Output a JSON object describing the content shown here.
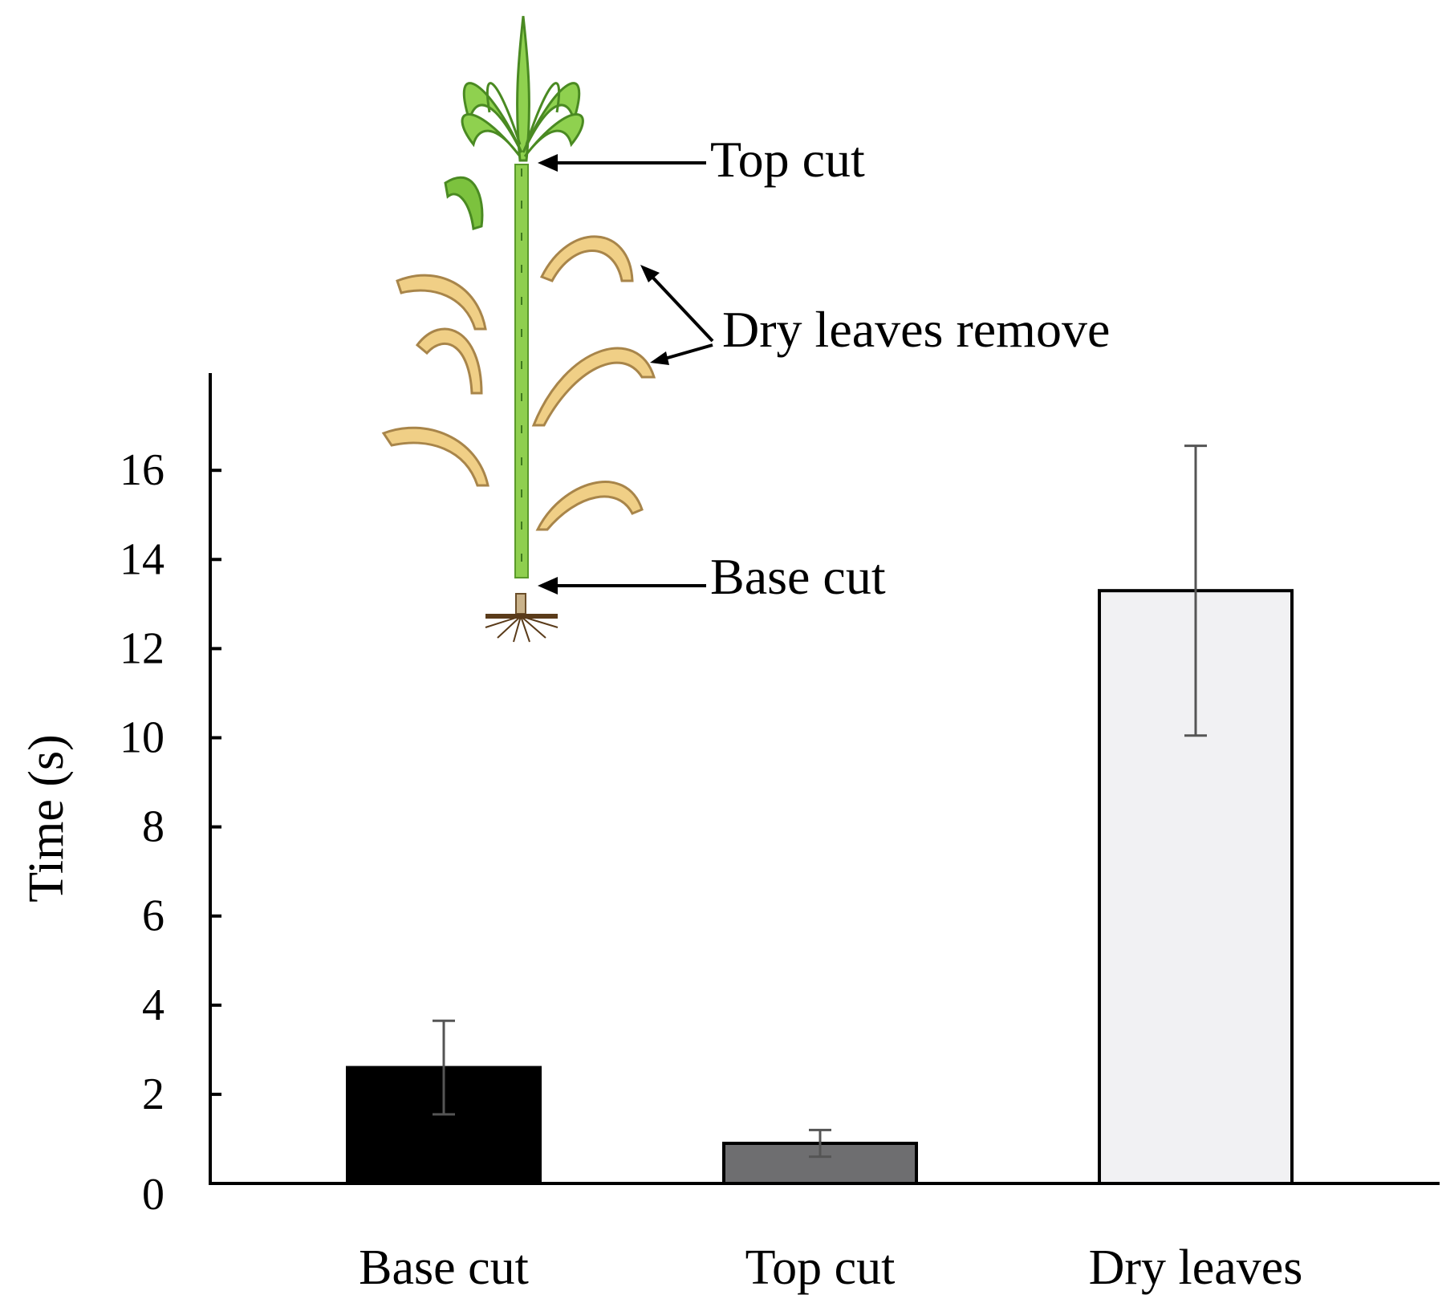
{
  "chart_data": {
    "type": "bar",
    "categories": [
      "Base cut",
      "Top cut",
      "Dry leaves"
    ],
    "series": [
      {
        "values": [
          2.6,
          0.9,
          13.3
        ],
        "errors": [
          1.05,
          0.3,
          3.25
        ],
        "colors": [
          "#000000",
          "#6e6e70",
          "#f1f1f3"
        ]
      }
    ],
    "title": "",
    "xlabel": "",
    "ylabel": "Time  (s)",
    "ylim": [
      0,
      18
    ],
    "yticks": [
      0,
      2,
      4,
      6,
      8,
      10,
      12,
      14,
      16
    ],
    "grid": false,
    "legend": "none",
    "annotations": [
      "Top cut",
      "Dry leaves remove",
      "Base cut"
    ]
  }
}
